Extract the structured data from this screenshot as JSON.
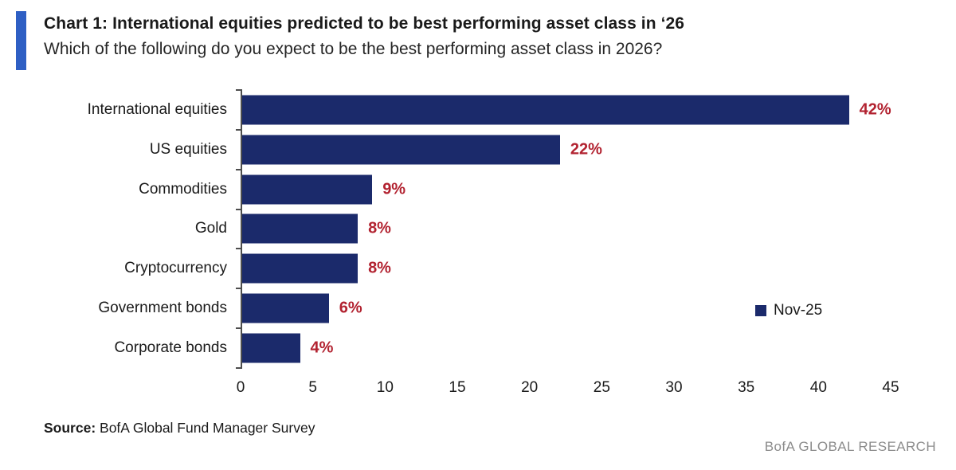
{
  "header": {
    "title": "Chart 1: International equities predicted to be best performing asset class in ‘26",
    "subtitle": "Which of the following do you expect to be the best performing asset class in 2026?",
    "accent_color": "#2e5fc4"
  },
  "chart_data": {
    "type": "bar",
    "orientation": "horizontal",
    "title": "Chart 1: International equities predicted to be best performing asset class in ‘26",
    "categories": [
      "International equities",
      "US equities",
      "Commodities",
      "Gold",
      "Cryptocurrency",
      "Government bonds",
      "Corporate bonds"
    ],
    "series": [
      {
        "name": "Nov-25",
        "values": [
          42,
          22,
          9,
          8,
          8,
          6,
          4
        ]
      }
    ],
    "value_labels": [
      "42%",
      "22%",
      "9%",
      "8%",
      "8%",
      "6%",
      "4%"
    ],
    "xlim": [
      0,
      45
    ],
    "x_ticks": [
      0,
      5,
      10,
      15,
      20,
      25,
      30,
      35,
      40,
      45
    ],
    "grid": false,
    "legend": {
      "label": "Nov-25",
      "position": "right-middle"
    },
    "colors": {
      "bar": "#1b2a6b",
      "value_label": "#b22230",
      "axis": "#4d4d4d"
    }
  },
  "footer": {
    "source_label": "Source:",
    "source_text": " BofA Global Fund Manager Survey",
    "brand": "BofA GLOBAL RESEARCH"
  }
}
